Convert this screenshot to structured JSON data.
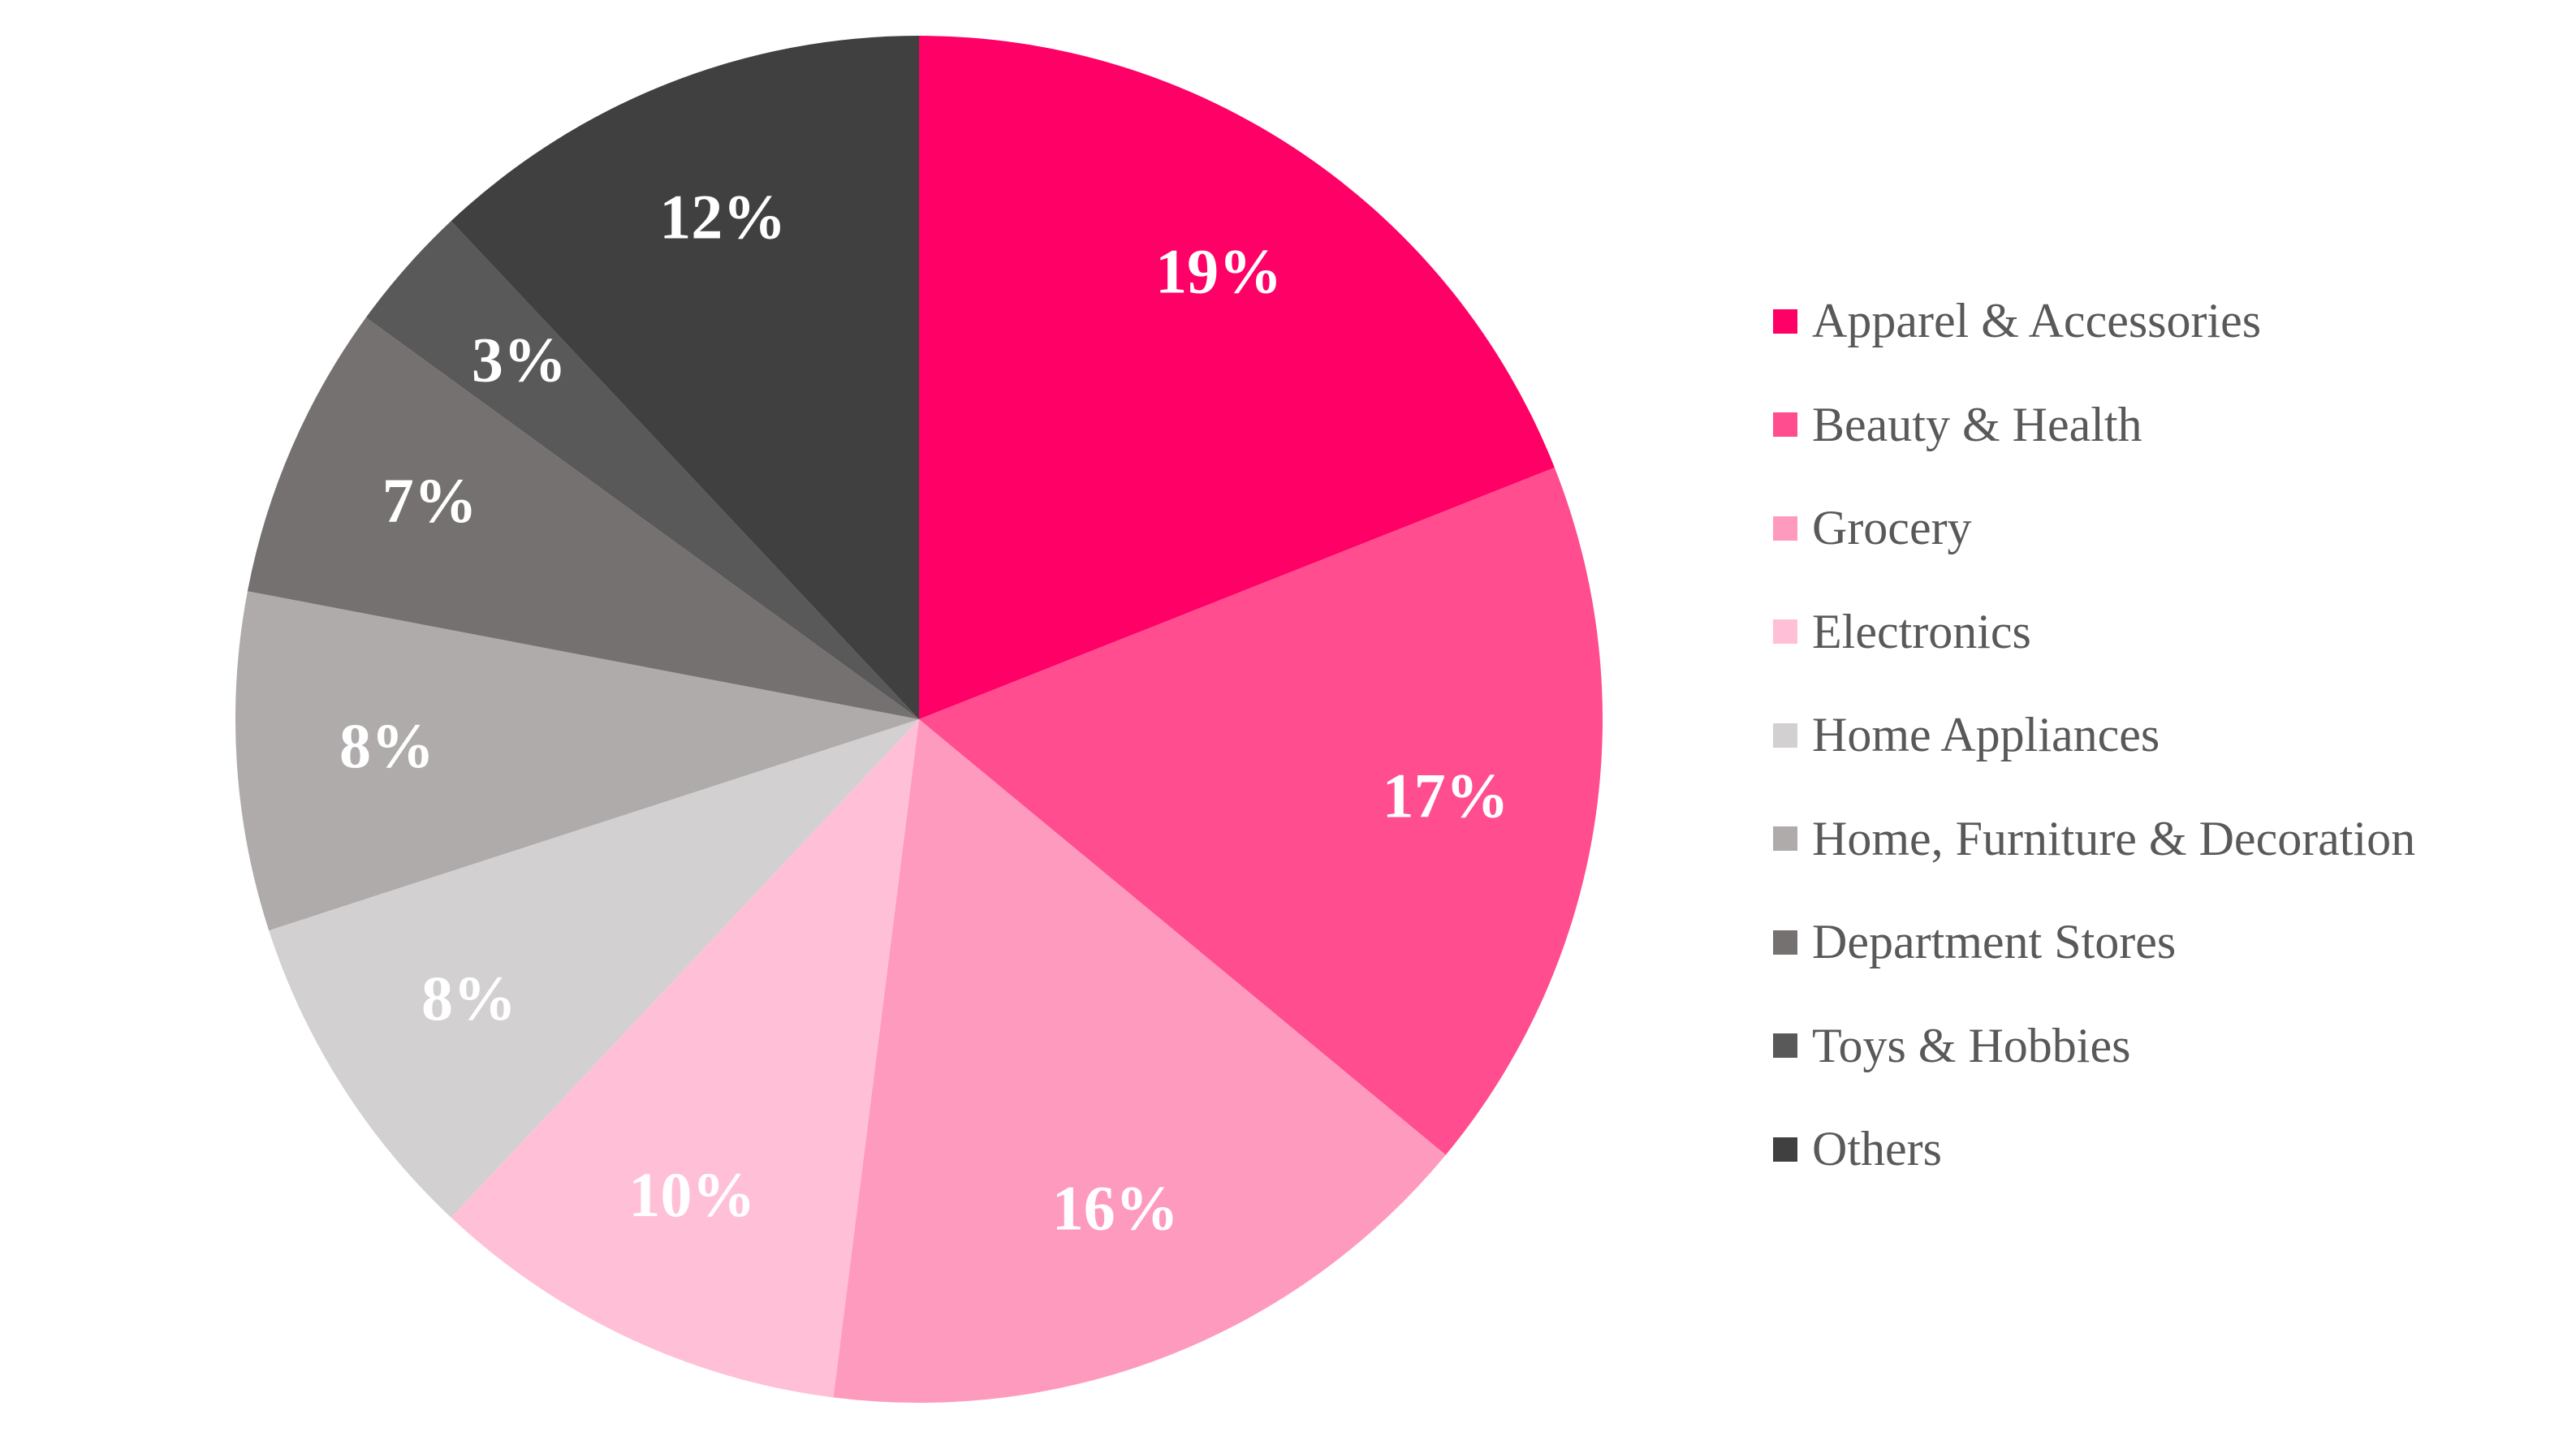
{
  "chart_data": {
    "type": "pie",
    "title": "",
    "start_angle_deg": 0,
    "direction": "clockwise",
    "legend_position": "right",
    "slices": [
      {
        "label": "Apparel & Accessories",
        "value": 19,
        "display": "19%",
        "color": "#FF0066"
      },
      {
        "label": "Beauty & Health",
        "value": 17,
        "display": "17%",
        "color": "#FF4D8F"
      },
      {
        "label": "Grocery",
        "value": 16,
        "display": "16%",
        "color": "#FF9ABF"
      },
      {
        "label": "Electronics",
        "value": 10,
        "display": "10%",
        "color": "#FFC0D7"
      },
      {
        "label": "Home Appliances",
        "value": 8,
        "display": "8%",
        "color": "#D2D0D0"
      },
      {
        "label": "Home, Furniture & Decoration",
        "value": 8,
        "display": "8%",
        "color": "#AFABAB"
      },
      {
        "label": "Department Stores",
        "value": 7,
        "display": "7%",
        "color": "#767171"
      },
      {
        "label": "Toys & Hobbies",
        "value": 3,
        "display": "3%",
        "color": "#595959"
      },
      {
        "label": "Others",
        "value": 12,
        "display": "12%",
        "color": "#404040"
      }
    ]
  }
}
